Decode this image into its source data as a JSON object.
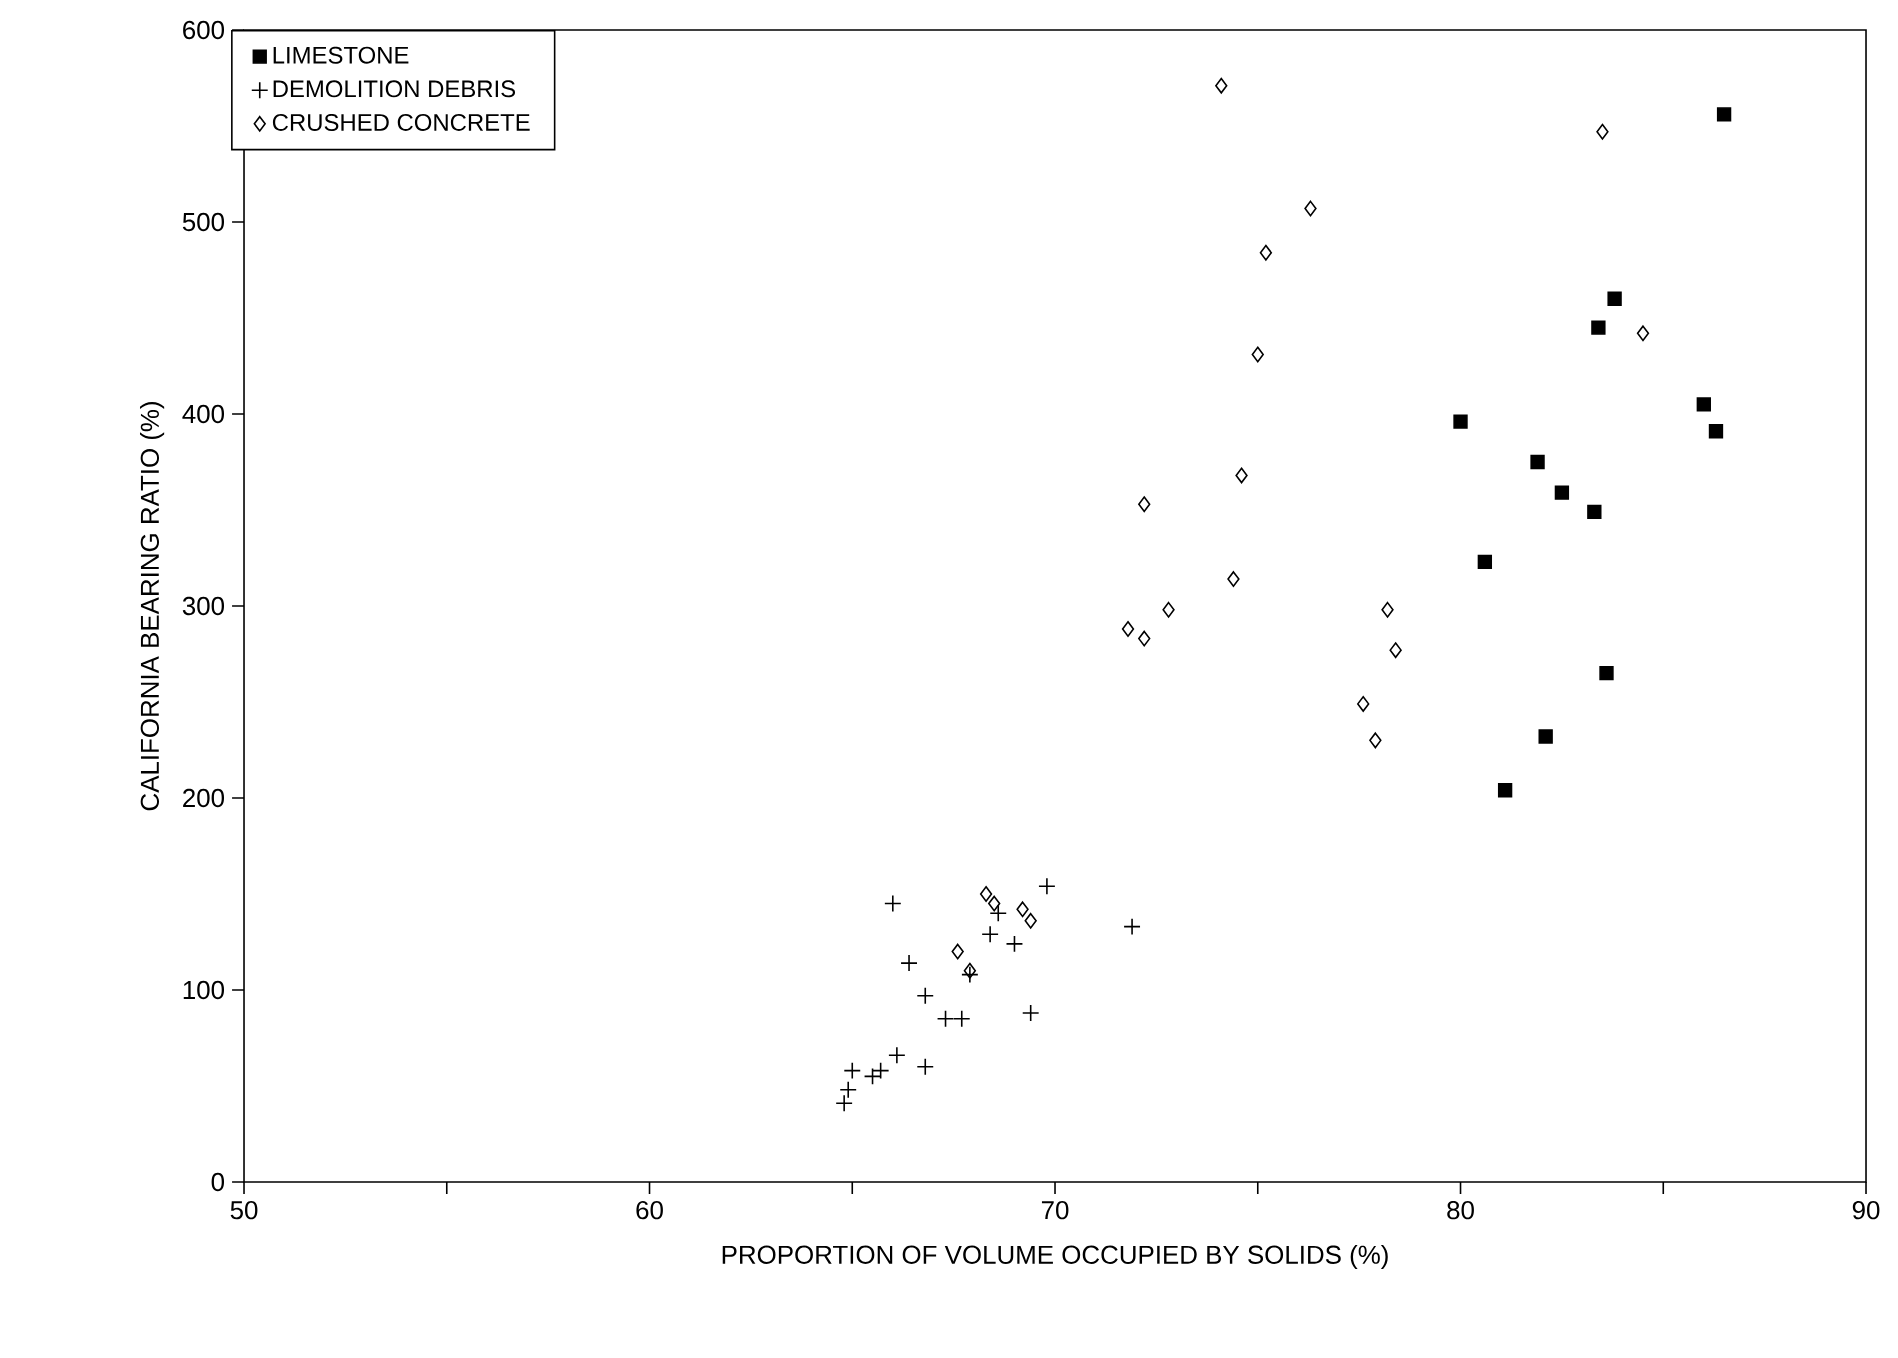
{
  "chart_data": {
    "type": "scatter",
    "xlabel": "PROPORTION OF VOLUME OCCUPIED BY SOLIDS (%)",
    "ylabel": "CALIFORNIA BEARING RATIO (%)",
    "xlim": [
      50,
      90
    ],
    "ylim": [
      0,
      600
    ],
    "xticks": [
      50,
      {
        "value": 55,
        "label": null
      },
      60,
      {
        "value": 65,
        "label": null
      },
      70,
      {
        "value": 75,
        "label": null
      },
      80,
      {
        "value": 85,
        "label": null
      },
      90
    ],
    "yticks": [
      0,
      100,
      200,
      300,
      400,
      500,
      600
    ],
    "grid": false,
    "legend": "top left",
    "series": [
      {
        "name": "LIMESTONE",
        "color": "#000000",
        "marker": "square",
        "x": [
          86.5,
          83.8,
          83.4,
          86.0,
          86.3,
          80.0,
          81.9,
          82.5,
          83.3,
          80.6,
          83.6,
          82.1,
          81.1
        ],
        "values": [
          556,
          460,
          445,
          405,
          391,
          396,
          375,
          359,
          349,
          323,
          265,
          232,
          204
        ]
      },
      {
        "name": "DEMOLITION DEBRIS",
        "color": "#000000",
        "marker": "cross",
        "x": [
          66.0,
          69.8,
          71.9,
          68.4,
          69.0,
          66.4,
          66.8,
          67.3,
          67.7,
          69.4,
          68.6,
          67.9,
          66.8,
          66.1,
          65.7,
          65.5,
          65.0,
          64.9,
          64.8
        ],
        "values": [
          145,
          154,
          133,
          129,
          124,
          114,
          97,
          85,
          85,
          88,
          140,
          108,
          60,
          66,
          58,
          55,
          58,
          48,
          41
        ]
      },
      {
        "name": "CRUSHED CONCRETE",
        "color": "#000000",
        "marker": "diamond",
        "x": [
          74.1,
          83.5,
          76.3,
          75.2,
          84.5,
          75.0,
          74.6,
          72.2,
          74.4,
          72.8,
          71.8,
          72.2,
          78.2,
          78.4,
          77.6,
          77.9,
          68.3,
          68.5,
          69.2,
          69.4,
          67.6,
          67.9
        ],
        "values": [
          571,
          547,
          507,
          484,
          442,
          431,
          368,
          353,
          314,
          298,
          288,
          283,
          298,
          277,
          249,
          230,
          150,
          145,
          142,
          136,
          120,
          110
        ]
      }
    ]
  }
}
